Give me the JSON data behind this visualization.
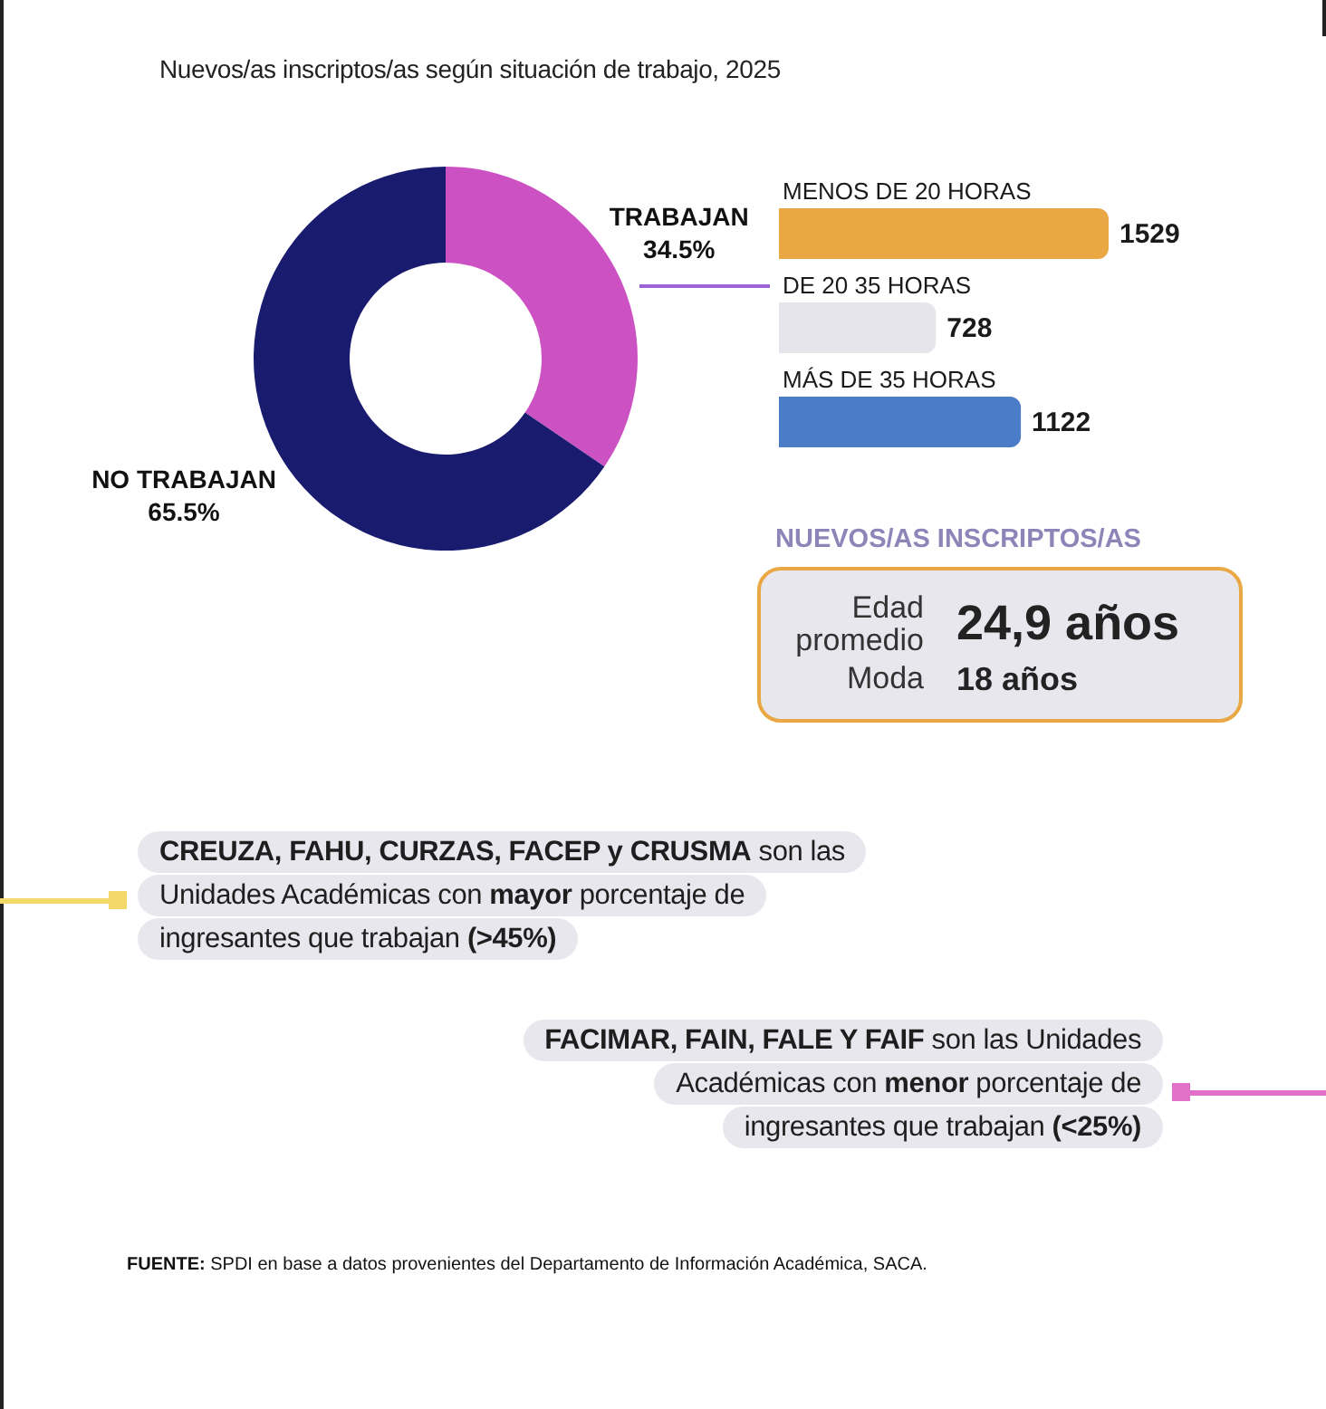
{
  "chart_data": [
    {
      "type": "donut",
      "title": "Nuevos/as inscriptos/as según situación de trabajo, 2025",
      "categories": [
        "TRABAJAN",
        "NO TRABAJAN"
      ],
      "values": [
        34.5,
        65.5
      ],
      "colors": [
        "#cc52c4",
        "#181b6e"
      ],
      "value_labels": [
        "34.5%",
        "65.5%"
      ]
    },
    {
      "type": "bar",
      "orientation": "horizontal",
      "categories": [
        "MENOS DE 20 HORAS",
        "DE 20 35 HORAS",
        "MÁS DE 35 HORAS"
      ],
      "values": [
        1529,
        728,
        1122
      ],
      "colors": [
        "#e9a844",
        "#e6e5ec",
        "#4a7cc7"
      ],
      "data_labels": true,
      "tick_labels": "y"
    },
    {
      "type": "other",
      "title": "NUEVOS/AS INSCRIPTOS/AS",
      "annotations": [
        "Edad promedio",
        "24,9 años",
        "Moda",
        "18 años"
      ]
    },
    {
      "type": "other",
      "annotations": [
        "CREUZA, FAHU, CURZAS, FACEP y CRUSMA",
        "son las",
        "Unidades Académicas con",
        "mayor",
        "porcentaje de",
        "ingresantes que trabajan",
        "(>45%)"
      ]
    },
    {
      "type": "other",
      "annotations": [
        "FACIMAR, FAIN, FALE Y FAIF",
        "son las Unidades",
        "Académicas con",
        "menor",
        "porcentaje de",
        "ingresantes que trabajan",
        "(<25%)"
      ]
    },
    {
      "type": "other",
      "annotations": [
        "FUENTE:",
        "SPDI en base a datos provenientes del Departamento de Información Académica, SACA."
      ]
    }
  ]
}
